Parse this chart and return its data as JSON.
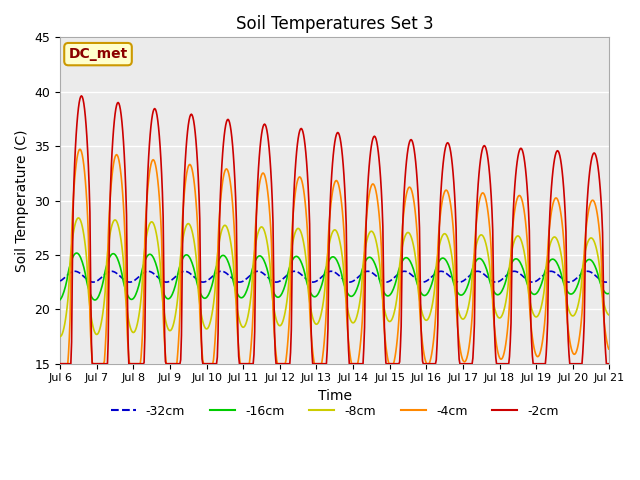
{
  "title": "Soil Temperatures Set 3",
  "xlabel": "Time",
  "ylabel": "Soil Temperature (C)",
  "ylim": [
    15,
    45
  ],
  "annotation": "DC_met",
  "legend_labels": [
    "-32cm",
    "-16cm",
    "-8cm",
    "-4cm",
    "-2cm"
  ],
  "legend_colors": [
    "#0000cc",
    "#00cc00",
    "#cccc00",
    "#ff8800",
    "#cc0000"
  ],
  "legend_styles": [
    "--",
    "-",
    "-",
    "-",
    "-"
  ],
  "bg_color": "#ebebeb",
  "tick_dates": [
    "Jul 6",
    "Jul 7",
    "Jul 8",
    "Jul 9",
    "Jul 10",
    "Jul 11",
    "Jul 12",
    "Jul 13",
    "Jul 14",
    "Jul 15",
    "Jul 16",
    "Jul 17",
    "Jul 18",
    "Jul 19",
    "Jul 20",
    "Jul 21"
  ],
  "n_days": 15,
  "base_temp": 23.0,
  "samples_per_day": 48
}
